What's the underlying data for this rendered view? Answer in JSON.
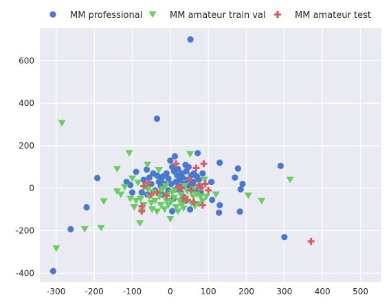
{
  "chart_data": {
    "type": "scatter",
    "title": "",
    "xlabel": "",
    "ylabel": "",
    "xlim": [
      -343,
      555
    ],
    "ylim": [
      -441,
      753
    ],
    "x_ticks": [
      -300,
      -200,
      -100,
      0,
      100,
      200,
      300,
      400,
      500
    ],
    "y_ticks": [
      -400,
      -200,
      0,
      200,
      400,
      600
    ],
    "grid": true,
    "legend_placement": "top",
    "series": [
      {
        "name": "MM professional",
        "marker": "circle",
        "color": "#4878d0",
        "points": [
          [
            -308,
            -390
          ],
          [
            -262,
            -193
          ],
          [
            -220,
            -90
          ],
          [
            -192,
            48
          ],
          [
            -35,
            327
          ],
          [
            53,
            700
          ],
          [
            -115,
            30
          ],
          [
            -105,
            15
          ],
          [
            -90,
            77
          ],
          [
            -100,
            -20
          ],
          [
            -75,
            -20
          ],
          [
            -70,
            40
          ],
          [
            -62,
            88
          ],
          [
            -55,
            50
          ],
          [
            -50,
            20
          ],
          [
            -45,
            70
          ],
          [
            -40,
            -10
          ],
          [
            -35,
            60
          ],
          [
            -30,
            30
          ],
          [
            -25,
            40
          ],
          [
            -20,
            55
          ],
          [
            -15,
            20
          ],
          [
            -10,
            70
          ],
          [
            -5,
            45
          ],
          [
            0,
            130
          ],
          [
            5,
            100
          ],
          [
            10,
            80
          ],
          [
            12,
            150
          ],
          [
            15,
            30
          ],
          [
            18,
            60
          ],
          [
            20,
            90
          ],
          [
            22,
            10
          ],
          [
            25,
            40
          ],
          [
            28,
            -20
          ],
          [
            30,
            70
          ],
          [
            32,
            50
          ],
          [
            35,
            20
          ],
          [
            38,
            -60
          ],
          [
            40,
            110
          ],
          [
            42,
            80
          ],
          [
            45,
            40
          ],
          [
            48,
            100
          ],
          [
            50,
            10
          ],
          [
            52,
            -100
          ],
          [
            55,
            60
          ],
          [
            60,
            30
          ],
          [
            62,
            70
          ],
          [
            65,
            -10
          ],
          [
            70,
            55
          ],
          [
            72,
            165
          ],
          [
            75,
            40
          ],
          [
            78,
            10
          ],
          [
            80,
            -20
          ],
          [
            85,
            70
          ],
          [
            108,
            30
          ],
          [
            110,
            -55
          ],
          [
            128,
            -115
          ],
          [
            130,
            -80
          ],
          [
            130,
            120
          ],
          [
            170,
            50
          ],
          [
            178,
            93
          ],
          [
            183,
            -110
          ],
          [
            185,
            -5
          ],
          [
            190,
            20
          ],
          [
            290,
            105
          ],
          [
            300,
            -230
          ],
          [
            -20,
            -30
          ],
          [
            -5,
            -10
          ],
          [
            8,
            -50
          ],
          [
            -60,
            -30
          ],
          [
            -25,
            10
          ],
          [
            2,
            20
          ],
          [
            15,
            -5
          ],
          [
            35,
            -40
          ],
          [
            58,
            20
          ],
          [
            5,
            -108
          ]
        ]
      },
      {
        "name": "MM amateur train val",
        "marker": "triangle-down",
        "color": "#6acc64",
        "points": [
          [
            -300,
            -283
          ],
          [
            -285,
            306
          ],
          [
            -225,
            -193
          ],
          [
            -182,
            -187
          ],
          [
            -175,
            -62
          ],
          [
            -140,
            90
          ],
          [
            -140,
            -15
          ],
          [
            -108,
            165
          ],
          [
            -105,
            -50
          ],
          [
            -95,
            -90
          ],
          [
            -90,
            -60
          ],
          [
            -80,
            -165
          ],
          [
            -75,
            -110
          ],
          [
            -70,
            -80
          ],
          [
            -60,
            110
          ],
          [
            -55,
            -40
          ],
          [
            -50,
            -70
          ],
          [
            -48,
            -100
          ],
          [
            -45,
            -20
          ],
          [
            -40,
            -60
          ],
          [
            -35,
            -110
          ],
          [
            -30,
            85
          ],
          [
            -28,
            -40
          ],
          [
            -25,
            -80
          ],
          [
            -20,
            -5
          ],
          [
            -15,
            -100
          ],
          [
            -10,
            -60
          ],
          [
            -8,
            -30
          ],
          [
            -5,
            -80
          ],
          [
            0,
            -145
          ],
          [
            2,
            -65
          ],
          [
            5,
            -20
          ],
          [
            10,
            -45
          ],
          [
            15,
            -90
          ],
          [
            20,
            -110
          ],
          [
            25,
            -60
          ],
          [
            28,
            -30
          ],
          [
            30,
            -80
          ],
          [
            35,
            -95
          ],
          [
            40,
            -50
          ],
          [
            45,
            -15
          ],
          [
            52,
            160
          ],
          [
            55,
            -70
          ],
          [
            60,
            -40
          ],
          [
            65,
            -85
          ],
          [
            70,
            -30
          ],
          [
            75,
            -75
          ],
          [
            80,
            -40
          ],
          [
            85,
            -60
          ],
          [
            95,
            -40
          ],
          [
            120,
            -30
          ],
          [
            205,
            -35
          ],
          [
            240,
            -60
          ],
          [
            315,
            40
          ],
          [
            -130,
            -30
          ],
          [
            -120,
            5
          ],
          [
            -100,
            45
          ],
          [
            -85,
            25
          ],
          [
            -78,
            -50
          ],
          [
            -65,
            5
          ],
          [
            -58,
            -5
          ],
          [
            -30,
            -20
          ],
          [
            -12,
            10
          ],
          [
            12,
            -10
          ],
          [
            38,
            10
          ],
          [
            62,
            -5
          ],
          [
            90,
            40
          ]
        ]
      },
      {
        "name": "MM amateur test",
        "marker": "plus",
        "color": "#d65f5f",
        "points": [
          [
            -75,
            -85
          ],
          [
            -75,
            -108
          ],
          [
            -70,
            10
          ],
          [
            -58,
            25
          ],
          [
            -50,
            -30
          ],
          [
            -35,
            -20
          ],
          [
            -10,
            -35
          ],
          [
            15,
            115
          ],
          [
            22,
            5
          ],
          [
            30,
            0
          ],
          [
            35,
            -45
          ],
          [
            45,
            -55
          ],
          [
            50,
            40
          ],
          [
            55,
            -10
          ],
          [
            62,
            -65
          ],
          [
            68,
            95
          ],
          [
            75,
            15
          ],
          [
            80,
            0
          ],
          [
            85,
            -80
          ],
          [
            88,
            115
          ],
          [
            92,
            20
          ],
          [
            100,
            -10
          ],
          [
            370,
            -250
          ]
        ]
      }
    ]
  }
}
